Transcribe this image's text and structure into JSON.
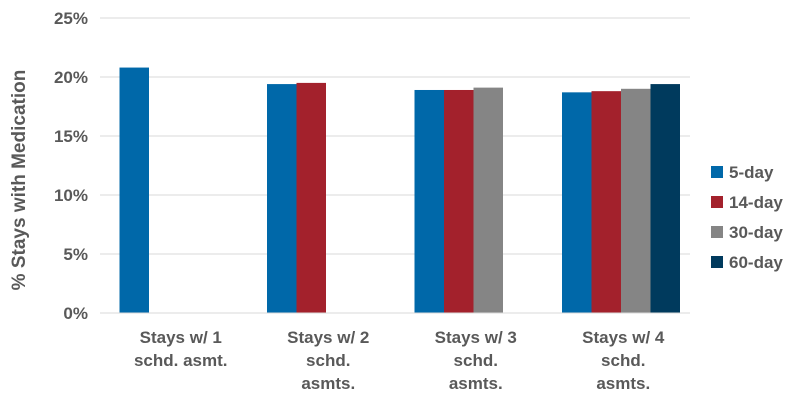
{
  "chart_data": {
    "type": "bar",
    "title": "",
    "xlabel": "",
    "ylabel": "% Stays with Medication",
    "ylim": [
      0,
      25
    ],
    "yticks": [
      "0%",
      "5%",
      "10%",
      "15%",
      "20%",
      "25%"
    ],
    "grid": true,
    "legend_position": "right",
    "categories": [
      [
        "Stays w/ 1",
        "schd. asmt."
      ],
      [
        "Stays w/ 2",
        "schd.",
        "asmts."
      ],
      [
        "Stays w/ 3",
        "schd.",
        "asmts."
      ],
      [
        "Stays w/ 4",
        "schd.",
        "asmts."
      ]
    ],
    "series": [
      {
        "name": "5-day",
        "color": "#0068A9",
        "values": [
          20.8,
          19.4,
          18.9,
          18.7
        ]
      },
      {
        "name": "14-day",
        "color": "#A3212C",
        "values": [
          null,
          19.5,
          18.9,
          18.8
        ]
      },
      {
        "name": "30-day",
        "color": "#858585",
        "values": [
          null,
          null,
          19.1,
          19.0
        ]
      },
      {
        "name": "60-day",
        "color": "#003A5D",
        "values": [
          null,
          null,
          null,
          19.4
        ]
      }
    ]
  }
}
